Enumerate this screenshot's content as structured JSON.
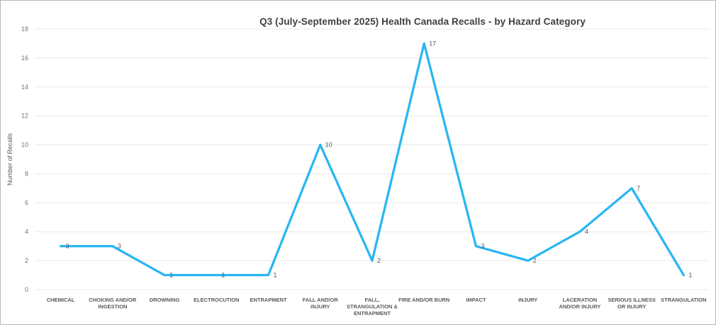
{
  "window": {
    "background_color": "#ffffff",
    "border_color": "#b9b9b9"
  },
  "chart_data": {
    "type": "line",
    "title": "Q3 (July-September 2025) Health Canada Recalls - by Hazard Category",
    "xlabel": "",
    "ylabel": "Number of Recalls",
    "categories": [
      "CHEMICAL",
      "CHOKING AND/OR INGESTION",
      "DROWNING",
      "ELECTROCUTION",
      "ENTRAPMENT",
      "FALL AND/OR INJURY",
      "FALL, STRANGULATION & ENTRAPMENT",
      "FIRE AND/OR BURN",
      "IMPACT",
      "INJURY",
      "LACERATION AND/OR INJURY",
      "SERIOUS ILLNESS OR INJURY",
      "STRANGULATION"
    ],
    "category_label_lines": [
      [
        "CHEMICAL"
      ],
      [
        "CHOKING AND/OR",
        "INGESTION"
      ],
      [
        "DROWNING"
      ],
      [
        "ELECTROCUTION"
      ],
      [
        "ENTRAPMENT"
      ],
      [
        "FALL AND/OR",
        "INJURY"
      ],
      [
        "FALL,",
        "STRANGULATION &",
        "ENTRAPMENT"
      ],
      [
        "FIRE AND/OR BURN"
      ],
      [
        "IMPACT"
      ],
      [
        "INJURY"
      ],
      [
        "LACERATION",
        "AND/OR INJURY"
      ],
      [
        "SERIOUS ILLNESS",
        "OR INJURY"
      ],
      [
        "STRANGULATION"
      ]
    ],
    "values": [
      3,
      3,
      1,
      1,
      1,
      10,
      2,
      17,
      3,
      2,
      4,
      7,
      1
    ],
    "data_labels_shown": true,
    "ylim": [
      0,
      18
    ],
    "yticks": [
      0,
      2,
      4,
      6,
      8,
      10,
      12,
      14,
      16,
      18
    ],
    "grid": "horizontal",
    "legend": "none",
    "colors": {
      "line": "#29b6f2",
      "grid": "#e8e8e8",
      "title": "#404040",
      "axis_tick": "#757575",
      "axis_title": "#595959",
      "data_label": "#595959",
      "category_label": "#595959"
    }
  }
}
